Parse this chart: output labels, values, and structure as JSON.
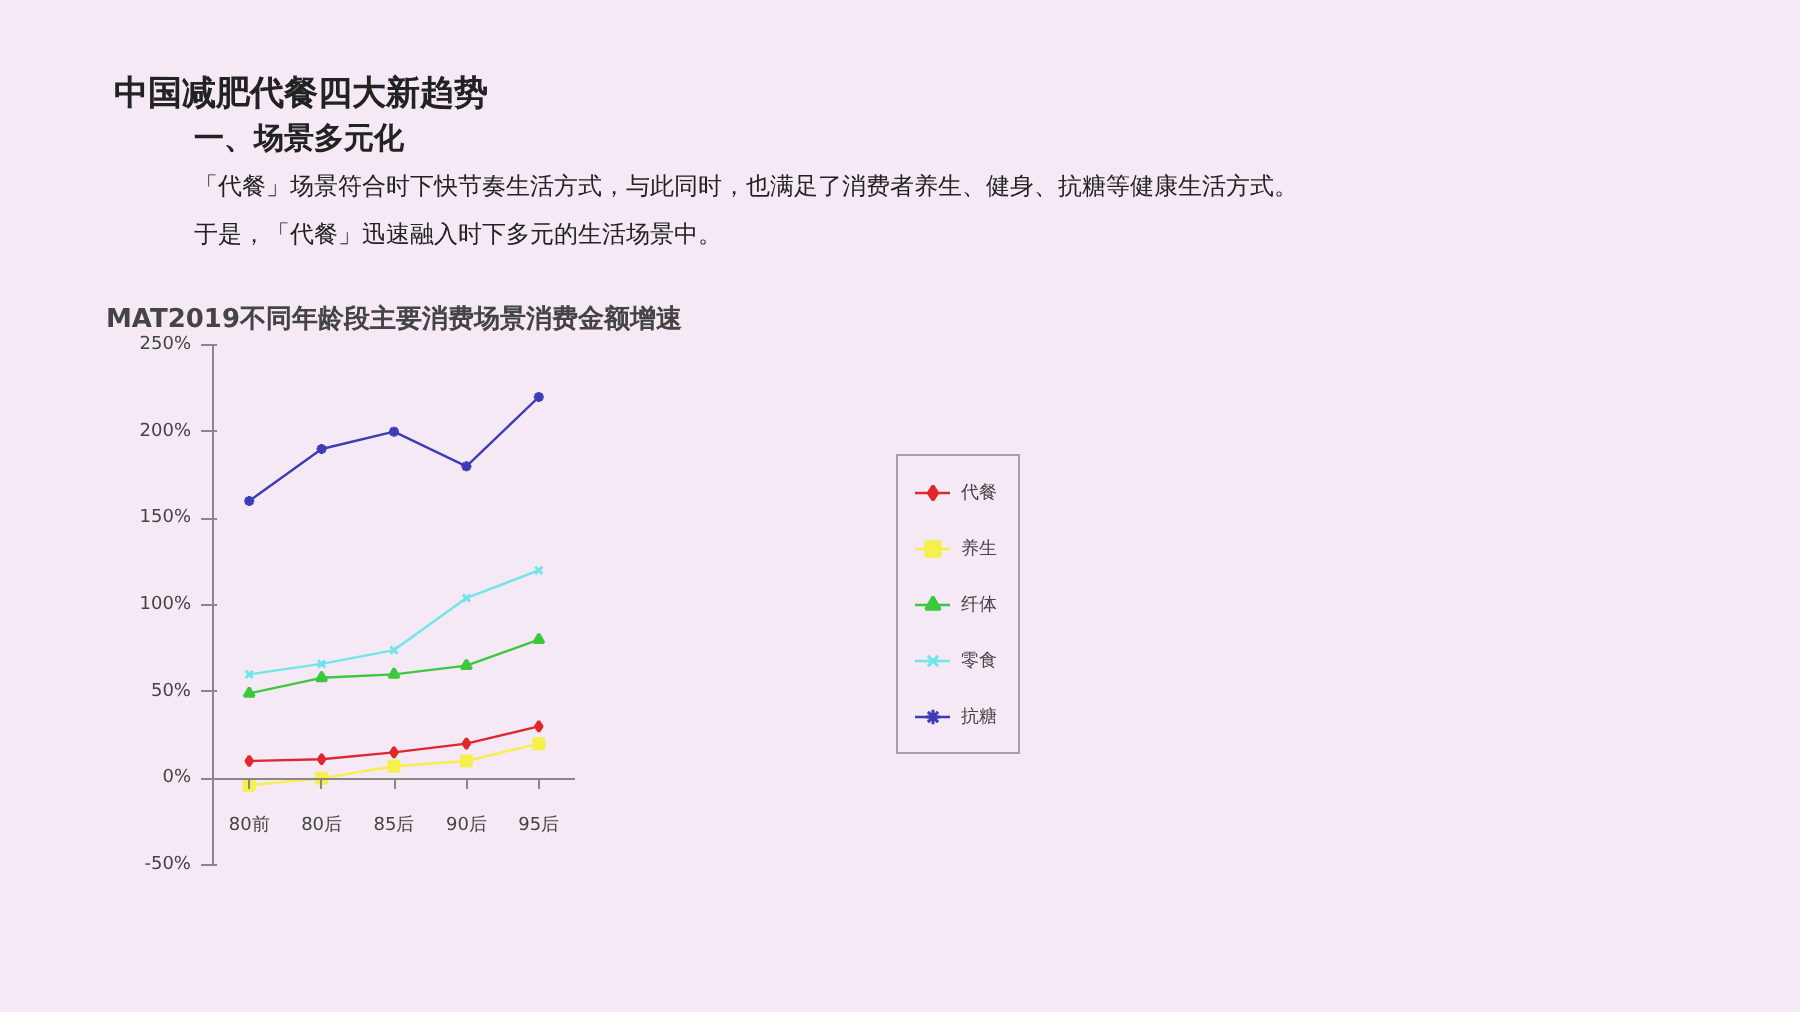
{
  "chart_data": {
    "type": "line",
    "title": "MAT2019不同年龄段主要消费场景消费金额增速",
    "annotations": [
      "中国减肥代餐四大新趋势",
      "一、场景多元化",
      "「代餐」场景符合时下快节奏生活方式，与此同时，也满足了消费者养生、健身、抗糖等健康生活方式。",
      "于是，「代餐」迅速融入时下多元的生活场景中。"
    ],
    "categories": [
      "80前",
      "80后",
      "85后",
      "90后",
      "95后"
    ],
    "series": [
      {
        "name": "代餐",
        "color": "#e0282c",
        "marker": "diamond",
        "values": [
          10,
          11,
          15,
          20,
          30
        ]
      },
      {
        "name": "养生",
        "color": "#f5f04a",
        "marker": "square",
        "values": [
          -4,
          0,
          7,
          10,
          20
        ]
      },
      {
        "name": "纤体",
        "color": "#3cc83c",
        "marker": "triangle",
        "values": [
          49,
          58,
          60,
          65,
          80
        ]
      },
      {
        "name": "零食",
        "color": "#6ee6ec",
        "marker": "x",
        "values": [
          60,
          66,
          74,
          104,
          120
        ]
      },
      {
        "name": "抗糖",
        "color": "#3c3cb4",
        "marker": "cross",
        "values": [
          160,
          190,
          200,
          180,
          220
        ]
      }
    ],
    "ylim": [
      -50,
      250
    ],
    "yticks": [
      {
        "value": -50,
        "label": "-50%"
      },
      {
        "value": 0,
        "label": "0%"
      },
      {
        "value": 50,
        "label": "50%"
      },
      {
        "value": 100,
        "label": "100%"
      },
      {
        "value": 150,
        "label": "150%"
      },
      {
        "value": 200,
        "label": "200%"
      },
      {
        "value": 250,
        "label": "250%"
      }
    ],
    "grid": false,
    "legend": "right",
    "line_style": "solid"
  }
}
